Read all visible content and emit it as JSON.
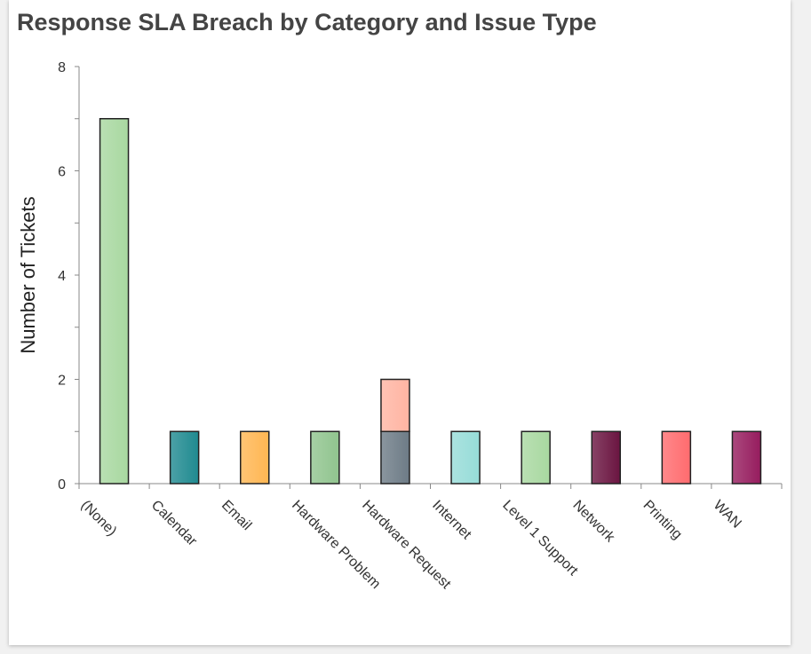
{
  "chart_data": {
    "type": "bar",
    "stacked": true,
    "title": "Response SLA Breach by Category and Issue Type",
    "xlabel": "",
    "ylabel": "Number of Tickets",
    "ylim": [
      0,
      8
    ],
    "yticks": [
      0,
      2,
      4,
      6,
      8
    ],
    "grid": false,
    "categories": [
      "(None)",
      "Calendar",
      "Email",
      "Hardware Problem",
      "Hardware Request",
      "Internet",
      "Level 1 Support",
      "Network",
      "Printing",
      "WAN"
    ],
    "series": [
      {
        "values": [
          7,
          1,
          1,
          1,
          1,
          1,
          1,
          1,
          1,
          1
        ],
        "colors": [
          "#a8d8a0",
          "#1f8a90",
          "#ffb652",
          "#90c48e",
          "#6d7b86",
          "#96dcd8",
          "#a8d8a0",
          "#6a1440",
          "#ff6b6e",
          "#961c5e"
        ]
      },
      {
        "values": [
          0,
          0,
          0,
          0,
          1,
          0,
          0,
          0,
          0,
          0
        ],
        "colors": [
          "#ffb4a2",
          "#ffb4a2",
          "#ffb4a2",
          "#ffb4a2",
          "#ffb4a2",
          "#ffb4a2",
          "#ffb4a2",
          "#ffb4a2",
          "#ffb4a2",
          "#ffb4a2"
        ]
      }
    ]
  }
}
